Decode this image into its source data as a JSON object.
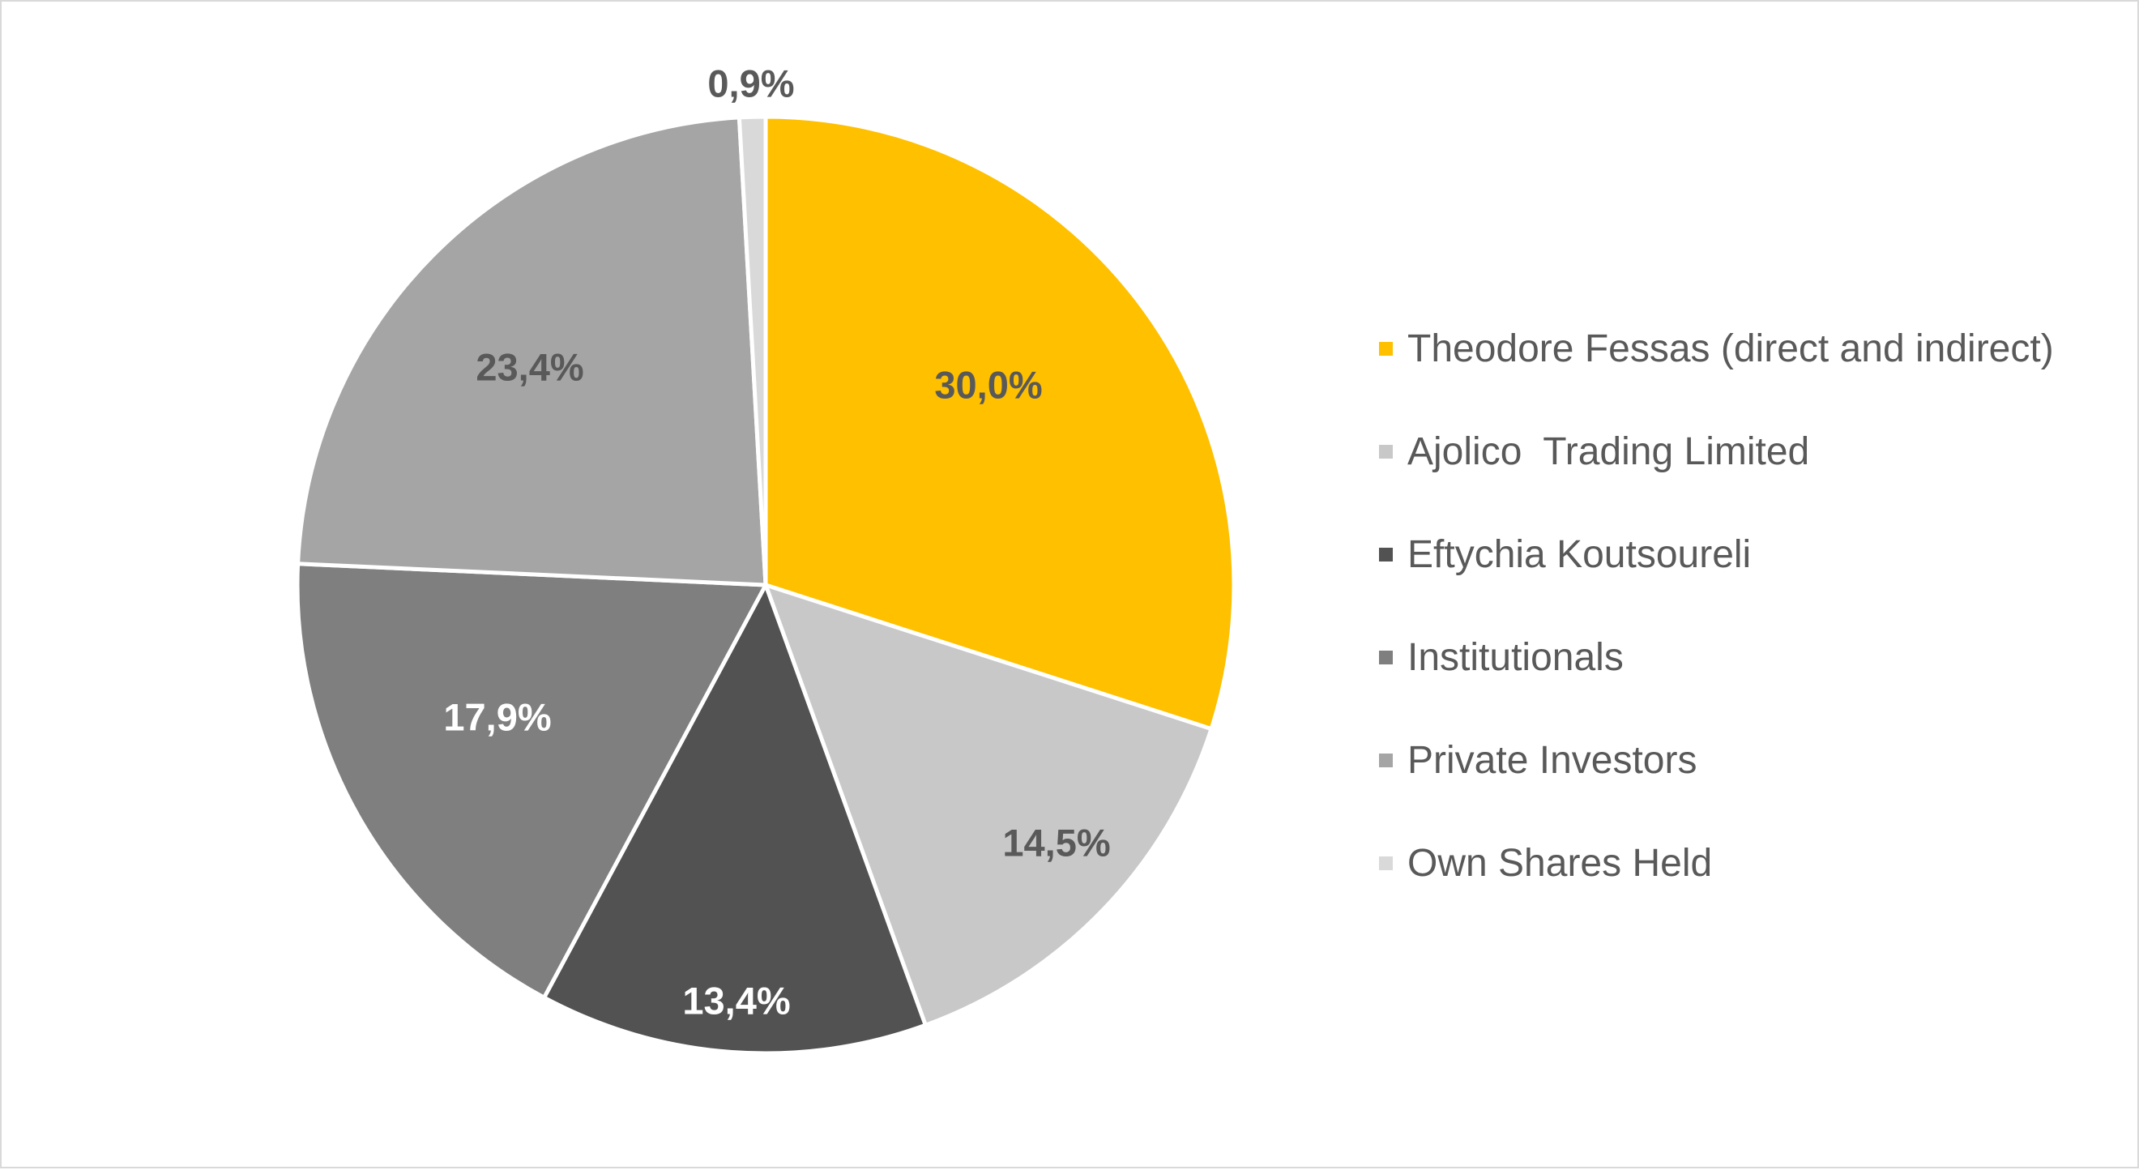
{
  "chart_data": {
    "type": "pie",
    "title": "",
    "legend_position": "right",
    "categories": [
      "Theodore Fessas (direct and indirect)",
      "Ajolico  Trading Limited",
      "Eftychia Koutsoureli",
      "Institutionals",
      "Private Investors",
      "Own Shares Held"
    ],
    "values": [
      30.0,
      14.5,
      13.4,
      17.9,
      23.4,
      0.9
    ],
    "labels": [
      "30,0%",
      "14,5%",
      "13,4%",
      "17,9%",
      "23,4%",
      "0,9%"
    ],
    "colors": [
      "#ffc000",
      "#c8c8c8",
      "#525252",
      "#7f7f7f",
      "#a5a5a5",
      "#d9d9d9"
    ],
    "label_colors": [
      "#595959",
      "#595959",
      "#ffffff",
      "#ffffff",
      "#595959",
      "#595959"
    ],
    "start_angle_deg": 0,
    "direction": "clockwise"
  }
}
